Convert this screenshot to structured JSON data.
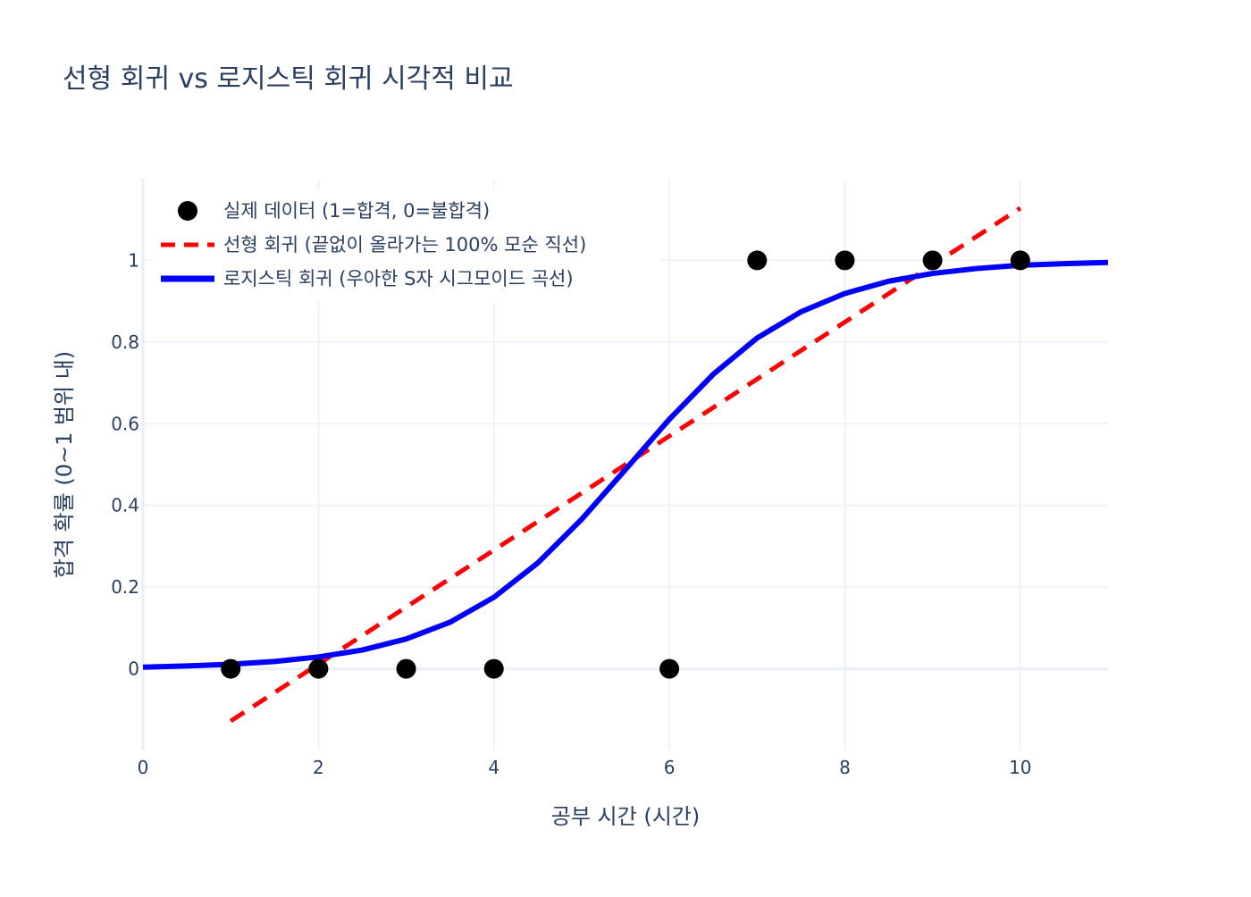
{
  "chart_data": {
    "type": "scatter",
    "title": "선형 회귀 vs 로지스틱 회귀 시각적 비교",
    "xlabel": "공부 시간 (시간)",
    "ylabel": "합격 확률 (0~1 범위 내)",
    "xlim": [
      0,
      11
    ],
    "ylim": [
      -0.2,
      1.2
    ],
    "x_ticks": [
      0,
      2,
      4,
      6,
      8,
      10
    ],
    "x_tick_labels": [
      "0",
      "2",
      "4",
      "6",
      "8",
      "10"
    ],
    "y_ticks": [
      0,
      0.2,
      0.4,
      0.6,
      0.8,
      1
    ],
    "y_tick_labels": [
      "0",
      "0.2",
      "0.4",
      "0.6",
      "0.8",
      "1"
    ],
    "grid": true,
    "legend_position": "top-left",
    "series": [
      {
        "name": "실제 데이터 (1=합격, 0=불합격)",
        "kind": "markers",
        "color": "#000000",
        "x": [
          1,
          2,
          3,
          4,
          6,
          7,
          8,
          9,
          10
        ],
        "y": [
          0,
          0,
          0,
          0,
          0,
          1,
          1,
          1,
          1
        ]
      },
      {
        "name": "선형 회귀 (끝없이 올라가는 100% 모순 직선)",
        "kind": "line",
        "dash": "dash",
        "color": "#ff0000",
        "x": [
          1,
          10
        ],
        "y": [
          -0.128,
          1.128
        ]
      },
      {
        "name": "로지스틱 회귀 (우아한 S자 시그모이드 곡선)",
        "kind": "line",
        "dash": "solid",
        "color": "#0000ff",
        "x": [
          0,
          0.5,
          1,
          1.5,
          2,
          2.5,
          3,
          3.5,
          4,
          4.5,
          5,
          5.5,
          6,
          6.5,
          7,
          7.5,
          8,
          8.5,
          9,
          9.5,
          10,
          10.5,
          11
        ],
        "y": [
          0.004,
          0.007,
          0.011,
          0.018,
          0.029,
          0.046,
          0.073,
          0.114,
          0.175,
          0.259,
          0.366,
          0.488,
          0.611,
          0.721,
          0.81,
          0.874,
          0.919,
          0.949,
          0.968,
          0.98,
          0.988,
          0.992,
          0.995
        ]
      }
    ],
    "colors": {
      "text": "#2a3f5f",
      "grid": "#ebf0f8",
      "zero_line": "#ebf0f8",
      "background": "#ffffff"
    }
  }
}
